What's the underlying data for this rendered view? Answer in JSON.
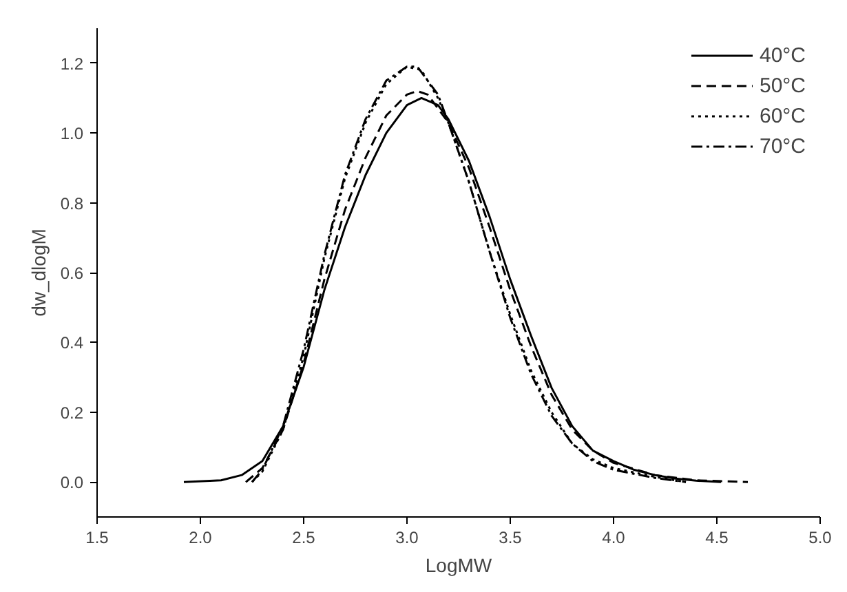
{
  "chart_data": {
    "type": "line",
    "xlabel": "LogMW",
    "ylabel": "dw_dlogM",
    "xlim": [
      1.5,
      5.0
    ],
    "ylim": [
      -0.1,
      1.3
    ],
    "xticks": [
      1.5,
      {
        "value": 2,
        "label": "2.0"
      },
      2.5,
      {
        "value": 3,
        "label": "3.0"
      },
      3.5,
      {
        "value": 4,
        "label": "4.0"
      },
      4.5,
      {
        "value": 5,
        "label": "5.0"
      }
    ],
    "yticks": [
      {
        "value": 0,
        "label": "0.0"
      },
      0.2,
      0.4,
      0.6,
      0.8,
      {
        "value": 1,
        "label": "1.0"
      },
      1.2
    ],
    "grid": false,
    "legend": "top right",
    "marker": "none",
    "series": [
      {
        "name": "40°C",
        "color": "#000000",
        "line_style": "solid",
        "x": [
          1.92,
          2.1,
          2.2,
          2.3,
          2.4,
          2.5,
          2.6,
          2.7,
          2.8,
          2.9,
          3.0,
          3.07,
          3.15,
          3.2,
          3.3,
          3.4,
          3.5,
          3.6,
          3.7,
          3.8,
          3.9,
          4.0,
          4.1,
          4.2,
          4.3,
          4.4,
          4.52
        ],
        "values": [
          0,
          0.005,
          0.02,
          0.06,
          0.16,
          0.33,
          0.55,
          0.73,
          0.88,
          1.0,
          1.08,
          1.1,
          1.08,
          1.04,
          0.92,
          0.76,
          0.58,
          0.42,
          0.27,
          0.16,
          0.09,
          0.06,
          0.035,
          0.02,
          0.01,
          0.004,
          0
        ]
      },
      {
        "name": "50°C",
        "color": "#000000",
        "line_style": "dashed",
        "x": [
          2.22,
          2.3,
          2.4,
          2.5,
          2.6,
          2.7,
          2.8,
          2.9,
          3.0,
          3.05,
          3.1,
          3.2,
          3.3,
          3.4,
          3.5,
          3.6,
          3.7,
          3.8,
          3.9,
          4.0,
          4.2,
          4.4,
          4.65
        ],
        "values": [
          0,
          0.04,
          0.15,
          0.34,
          0.58,
          0.78,
          0.93,
          1.05,
          1.11,
          1.12,
          1.11,
          1.03,
          0.9,
          0.73,
          0.55,
          0.39,
          0.25,
          0.15,
          0.09,
          0.055,
          0.02,
          0.005,
          0
        ]
      },
      {
        "name": "60°C",
        "color": "#000000",
        "line_style": "dotted",
        "x": [
          2.25,
          2.3,
          2.4,
          2.5,
          2.6,
          2.7,
          2.8,
          2.9,
          3.0,
          3.07,
          3.15,
          3.2,
          3.3,
          3.4,
          3.5,
          3.6,
          3.7,
          3.8,
          3.9,
          4.0,
          4.2,
          4.35
        ],
        "values": [
          0,
          0.03,
          0.15,
          0.36,
          0.64,
          0.87,
          1.03,
          1.14,
          1.19,
          1.18,
          1.1,
          1.03,
          0.86,
          0.66,
          0.48,
          0.32,
          0.2,
          0.11,
          0.065,
          0.04,
          0.015,
          0
        ]
      },
      {
        "name": "70°C",
        "color": "#000000",
        "line_style": "dashdot",
        "x": [
          2.25,
          2.3,
          2.4,
          2.5,
          2.6,
          2.7,
          2.8,
          2.9,
          3.0,
          3.05,
          3.15,
          3.2,
          3.3,
          3.4,
          3.5,
          3.6,
          3.7,
          3.8,
          3.9,
          4.0,
          4.2,
          4.35
        ],
        "values": [
          0,
          0.035,
          0.16,
          0.38,
          0.65,
          0.88,
          1.04,
          1.15,
          1.19,
          1.19,
          1.11,
          1.03,
          0.86,
          0.66,
          0.47,
          0.31,
          0.19,
          0.11,
          0.06,
          0.035,
          0.012,
          0
        ]
      }
    ]
  }
}
